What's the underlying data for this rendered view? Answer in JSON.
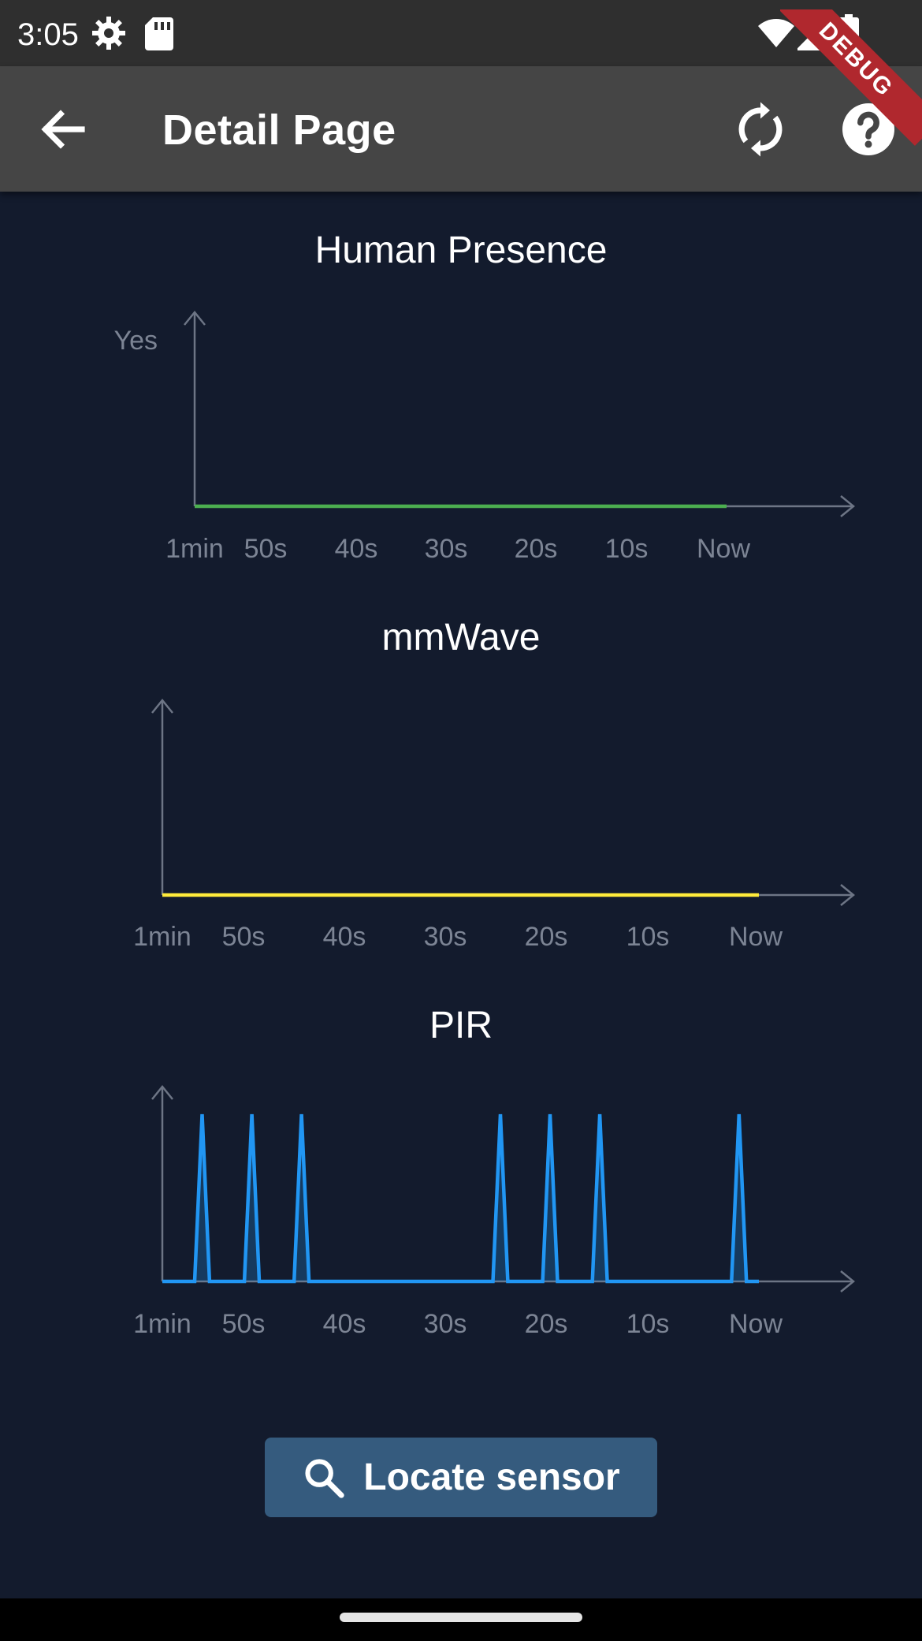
{
  "status_bar": {
    "time": "3:05",
    "icons": [
      "settings-icon",
      "sd-card-icon",
      "wifi-icon",
      "signal-icon",
      "battery-icon"
    ]
  },
  "debug_banner": "DEBUG",
  "app_bar": {
    "title": "Detail Page",
    "back_icon": "arrow-back-icon",
    "refresh_icon": "refresh-icon",
    "help_icon": "help-icon",
    "background": "#454545"
  },
  "colors": {
    "background": "#131b2d",
    "human_presence": "#4caf50",
    "mmwave": "#ffeb3b",
    "pir": "#2196f3",
    "axis": "#6d7585",
    "tick": "#7c8494"
  },
  "chart_data": [
    {
      "type": "line",
      "title": "Human Presence",
      "categories": [
        "1min",
        "50s",
        "40s",
        "30s",
        "20s",
        "10s",
        "Now"
      ],
      "y_label": "Yes",
      "x_range_seconds_ago": [
        60,
        0
      ],
      "y_range": [
        0,
        1
      ],
      "series": [
        {
          "color": "#4caf50",
          "points": [
            [
              60,
              0
            ],
            [
              0,
              0
            ]
          ]
        }
      ]
    },
    {
      "type": "line",
      "title": "mmWave",
      "categories": [
        "1min",
        "50s",
        "40s",
        "30s",
        "20s",
        "10s",
        "Now"
      ],
      "x_range_seconds_ago": [
        60,
        0
      ],
      "y_range": [
        0,
        1
      ],
      "series": [
        {
          "color": "#ffeb3b",
          "points": [
            [
              60,
              0
            ],
            [
              0,
              0
            ]
          ]
        }
      ]
    },
    {
      "type": "area",
      "title": "PIR",
      "categories": [
        "1min",
        "50s",
        "40s",
        "30s",
        "20s",
        "10s",
        "Now"
      ],
      "x_range_seconds_ago": [
        60,
        0
      ],
      "y_range": [
        0,
        1
      ],
      "series": [
        {
          "color": "#2196f3",
          "peaks_seconds_ago": [
            56,
            51,
            46,
            26,
            21,
            16,
            2
          ]
        }
      ]
    }
  ],
  "locate_button": {
    "label": "Locate sensor",
    "icon": "search-icon"
  }
}
